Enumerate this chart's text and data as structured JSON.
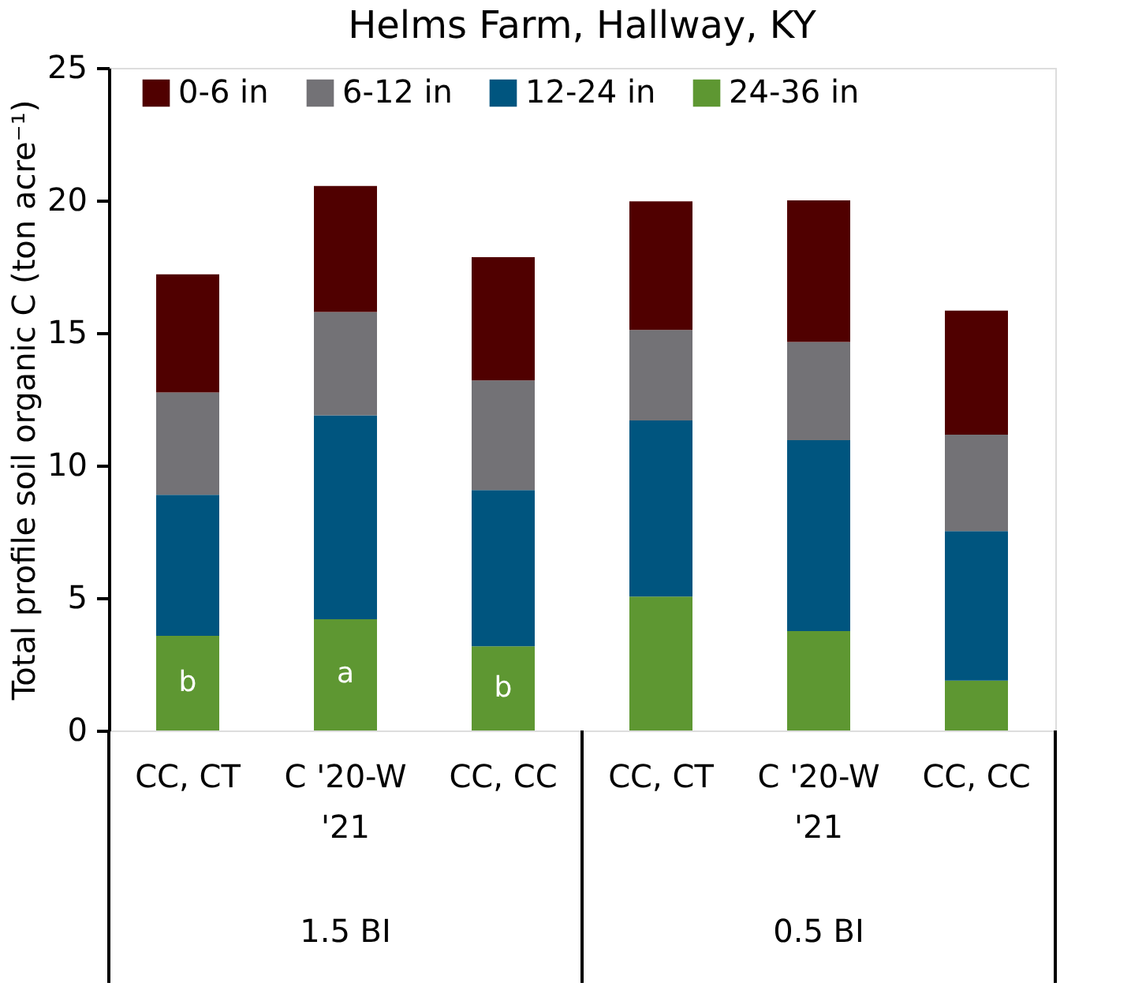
{
  "chart_data": {
    "type": "bar",
    "title": "Helms Farm, Hallway, KY",
    "ylabel": "Total profile soil organic C (ton acre⁻¹)",
    "categories": [
      "CC, CT",
      "C '20-W '21",
      "CC, CC",
      "CC, CT",
      "C '20-W '21",
      "CC, CC"
    ],
    "stacked": true,
    "series": [
      {
        "name": "24-36 in",
        "color": "#5e9732",
        "values": [
          3.57,
          4.2,
          3.18,
          5.05,
          3.75,
          1.88
        ],
        "value_labels": [
          "b",
          "a",
          "b",
          null,
          null,
          null
        ]
      },
      {
        "name": "12-24 in",
        "color": "#00557f",
        "values": [
          5.32,
          7.69,
          5.89,
          6.65,
          7.2,
          5.64
        ]
      },
      {
        "name": "6-12 in",
        "color": "#737276",
        "values": [
          3.86,
          3.9,
          4.14,
          3.41,
          3.71,
          3.64
        ]
      },
      {
        "name": "0-6 in",
        "color": "#500000",
        "values": [
          4.46,
          4.75,
          4.65,
          4.85,
          5.34,
          4.68
        ]
      }
    ],
    "ylim": [
      0,
      25
    ],
    "yticks": [
      0,
      5,
      10,
      15,
      20,
      25
    ],
    "annotations": [
      "1.5 BI",
      "0.5 BI"
    ],
    "legend": "top",
    "grid": false
  }
}
